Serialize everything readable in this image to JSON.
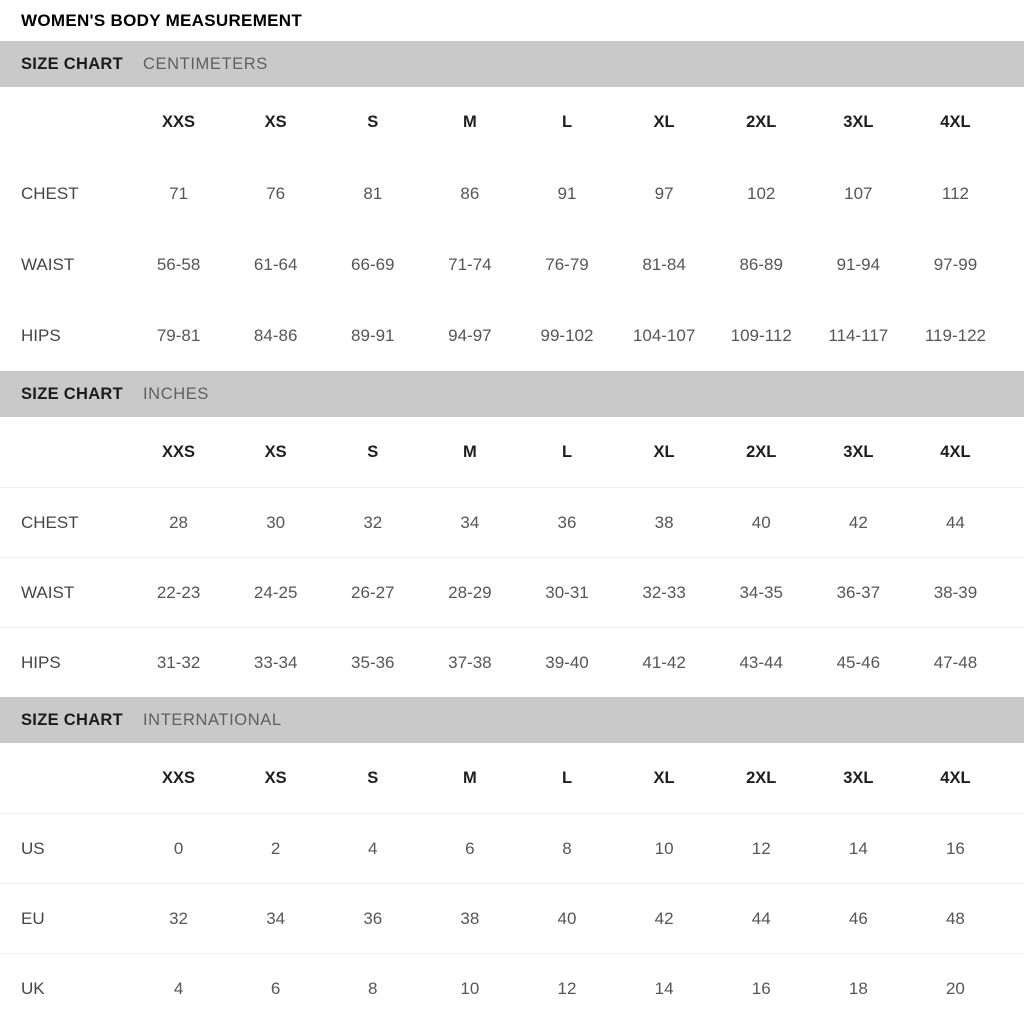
{
  "page_title": "WOMEN'S BODY MEASUREMENT",
  "colors": {
    "band_background": "#c9c9c9",
    "band_title_text": "#1c1c1c",
    "band_subtitle_text": "#606060",
    "value_text": "#565658",
    "divider": "#f0f0f2"
  },
  "sizes": [
    "XXS",
    "XS",
    "S",
    "M",
    "L",
    "XL",
    "2XL",
    "3XL",
    "4XL"
  ],
  "sections": [
    {
      "title": "SIZE CHART",
      "subtitle": "CENTIMETERS",
      "has_dividers": false,
      "rows": [
        {
          "label": "CHEST",
          "values": [
            "71",
            "76",
            "81",
            "86",
            "91",
            "97",
            "102",
            "107",
            "112"
          ]
        },
        {
          "label": "WAIST",
          "values": [
            "56-58",
            "61-64",
            "66-69",
            "71-74",
            "76-79",
            "81-84",
            "86-89",
            "91-94",
            "97-99"
          ]
        },
        {
          "label": "HIPS",
          "values": [
            "79-81",
            "84-86",
            "89-91",
            "94-97",
            "99-102",
            "104-107",
            "109-112",
            "114-117",
            "119-122"
          ]
        }
      ]
    },
    {
      "title": "SIZE CHART",
      "subtitle": "INCHES",
      "has_dividers": true,
      "rows": [
        {
          "label": "CHEST",
          "values": [
            "28",
            "30",
            "32",
            "34",
            "36",
            "38",
            "40",
            "42",
            "44"
          ]
        },
        {
          "label": "WAIST",
          "values": [
            "22-23",
            "24-25",
            "26-27",
            "28-29",
            "30-31",
            "32-33",
            "34-35",
            "36-37",
            "38-39"
          ]
        },
        {
          "label": "HIPS",
          "values": [
            "31-32",
            "33-34",
            "35-36",
            "37-38",
            "39-40",
            "41-42",
            "43-44",
            "45-46",
            "47-48"
          ]
        }
      ]
    },
    {
      "title": "SIZE CHART",
      "subtitle": "INTERNATIONAL",
      "has_dividers": true,
      "rows": [
        {
          "label": "US",
          "values": [
            "0",
            "2",
            "4",
            "6",
            "8",
            "10",
            "12",
            "14",
            "16"
          ]
        },
        {
          "label": "EU",
          "values": [
            "32",
            "34",
            "36",
            "38",
            "40",
            "42",
            "44",
            "46",
            "48"
          ]
        },
        {
          "label": "UK",
          "values": [
            "4",
            "6",
            "8",
            "10",
            "12",
            "14",
            "16",
            "18",
            "20"
          ]
        }
      ]
    }
  ]
}
